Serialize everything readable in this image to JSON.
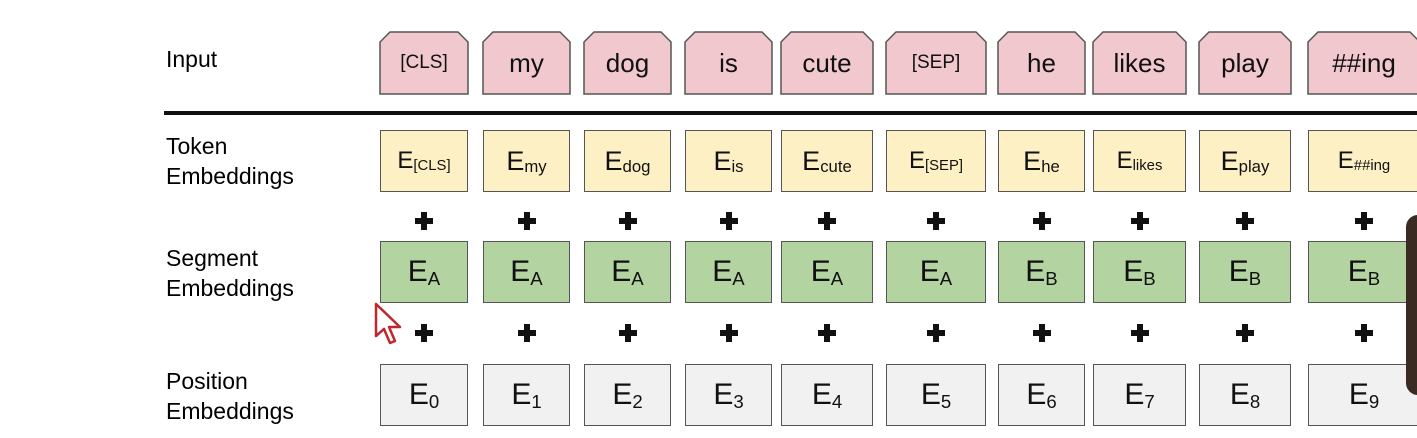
{
  "rows": {
    "input": {
      "label": "Input"
    },
    "token": {
      "label": "Token\nEmbeddings"
    },
    "segment": {
      "label": "Segment\nEmbeddings"
    },
    "position": {
      "label": "Position\nEmbeddings"
    }
  },
  "tokens": [
    {
      "input": "[CLS]",
      "token_base": "E",
      "token_sub": "[CLS]",
      "segment_base": "E",
      "segment_sub": "A",
      "position_base": "E",
      "position_sub": "0"
    },
    {
      "input": "my",
      "token_base": "E",
      "token_sub": "my",
      "segment_base": "E",
      "segment_sub": "A",
      "position_base": "E",
      "position_sub": "1"
    },
    {
      "input": "dog",
      "token_base": "E",
      "token_sub": "dog",
      "segment_base": "E",
      "segment_sub": "A",
      "position_base": "E",
      "position_sub": "2"
    },
    {
      "input": "is",
      "token_base": "E",
      "token_sub": "is",
      "segment_base": "E",
      "segment_sub": "A",
      "position_base": "E",
      "position_sub": "3"
    },
    {
      "input": "cute",
      "token_base": "E",
      "token_sub": "cute",
      "segment_base": "E",
      "segment_sub": "A",
      "position_base": "E",
      "position_sub": "4"
    },
    {
      "input": "[SEP]",
      "token_base": "E",
      "token_sub": "[SEP]",
      "segment_base": "E",
      "segment_sub": "A",
      "position_base": "E",
      "position_sub": "5"
    },
    {
      "input": "he",
      "token_base": "E",
      "token_sub": "he",
      "segment_base": "E",
      "segment_sub": "B",
      "position_base": "E",
      "position_sub": "6"
    },
    {
      "input": "likes",
      "token_base": "E",
      "token_sub": "likes",
      "segment_base": "E",
      "segment_sub": "B",
      "position_base": "E",
      "position_sub": "7"
    },
    {
      "input": "play",
      "token_base": "E",
      "token_sub": "play",
      "segment_base": "E",
      "segment_sub": "B",
      "position_base": "E",
      "position_sub": "8"
    },
    {
      "input": "##ing",
      "token_base": "E",
      "token_sub": "##ing",
      "segment_base": "E",
      "segment_sub": "B",
      "position_base": "E",
      "position_sub": "9"
    }
  ],
  "colors": {
    "input": "#f0c8cd",
    "token": "#fdf0c5",
    "segment": "#b3d3a1",
    "position": "#f1f1f1"
  },
  "icons": {
    "plus": "plus-icon",
    "cursor": "mouse-pointer-icon"
  }
}
